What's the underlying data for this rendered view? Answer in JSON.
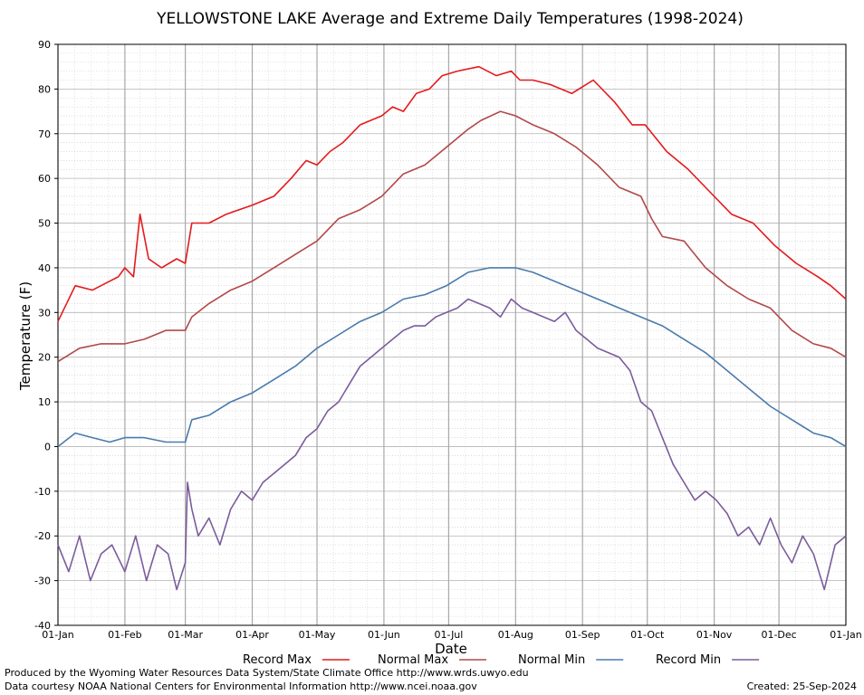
{
  "chart_data": {
    "type": "line",
    "title": "YELLOWSTONE LAKE Average and Extreme Daily Temperatures (1998-2024)",
    "xlabel": "Date",
    "ylabel": "Temperature (F)",
    "ylim": [
      -40,
      90
    ],
    "yticks": [
      -40,
      -30,
      -20,
      -10,
      0,
      10,
      20,
      30,
      40,
      50,
      60,
      70,
      80,
      90
    ],
    "xlim": [
      0,
      365
    ],
    "xticks": [
      {
        "day": 0,
        "label": "01-Jan"
      },
      {
        "day": 31,
        "label": "01-Feb"
      },
      {
        "day": 59,
        "label": "01-Mar"
      },
      {
        "day": 90,
        "label": "01-Apr"
      },
      {
        "day": 120,
        "label": "01-May"
      },
      {
        "day": 151,
        "label": "01-Jun"
      },
      {
        "day": 181,
        "label": "01-Jul"
      },
      {
        "day": 212,
        "label": "01-Aug"
      },
      {
        "day": 243,
        "label": "01-Sep"
      },
      {
        "day": 273,
        "label": "01-Oct"
      },
      {
        "day": 304,
        "label": "01-Nov"
      },
      {
        "day": 334,
        "label": "01-Dec"
      },
      {
        "day": 365,
        "label": "01-Jan"
      }
    ],
    "grid": true,
    "legend_position": "bottom",
    "series": [
      {
        "name": "Record Max",
        "color": "#e41a1c",
        "x": [
          0,
          8,
          16,
          24,
          28,
          31,
          35,
          38,
          42,
          48,
          55,
          59,
          62,
          70,
          78,
          90,
          100,
          108,
          115,
          120,
          126,
          132,
          140,
          150,
          155,
          160,
          166,
          172,
          178,
          185,
          195,
          203,
          210,
          214,
          220,
          228,
          238,
          248,
          258,
          266,
          272,
          282,
          292,
          302,
          312,
          322,
          332,
          342,
          352,
          358,
          365
        ],
        "y": [
          28,
          36,
          35,
          37,
          38,
          40,
          38,
          52,
          42,
          40,
          42,
          41,
          50,
          50,
          52,
          54,
          56,
          60,
          64,
          63,
          66,
          68,
          72,
          74,
          76,
          75,
          79,
          80,
          83,
          84,
          85,
          83,
          84,
          82,
          82,
          81,
          79,
          82,
          77,
          72,
          72,
          66,
          62,
          57,
          52,
          50,
          45,
          41,
          38,
          36,
          33
        ]
      },
      {
        "name": "Normal Max",
        "color": "#b2484a",
        "x": [
          0,
          10,
          20,
          31,
          40,
          50,
          59,
          62,
          70,
          80,
          90,
          100,
          110,
          120,
          130,
          140,
          150,
          160,
          170,
          180,
          190,
          196,
          205,
          212,
          220,
          230,
          240,
          250,
          260,
          270,
          275,
          280,
          290,
          300,
          310,
          320,
          330,
          340,
          350,
          358,
          365
        ],
        "y": [
          19,
          22,
          23,
          23,
          24,
          26,
          26,
          29,
          32,
          35,
          37,
          40,
          43,
          46,
          51,
          53,
          56,
          61,
          63,
          67,
          71,
          73,
          75,
          74,
          72,
          70,
          67,
          63,
          58,
          56,
          51,
          47,
          46,
          40,
          36,
          33,
          31,
          26,
          23,
          22,
          20
        ]
      },
      {
        "name": "Normal Min",
        "color": "#4a7bab",
        "x": [
          0,
          8,
          16,
          24,
          31,
          40,
          50,
          59,
          62,
          70,
          80,
          90,
          100,
          110,
          120,
          130,
          140,
          150,
          160,
          170,
          180,
          190,
          200,
          212,
          220,
          230,
          240,
          250,
          260,
          270,
          280,
          290,
          300,
          310,
          320,
          330,
          340,
          350,
          358,
          365
        ],
        "y": [
          0,
          3,
          2,
          1,
          2,
          2,
          1,
          1,
          6,
          7,
          10,
          12,
          15,
          18,
          22,
          25,
          28,
          30,
          33,
          34,
          36,
          39,
          40,
          40,
          39,
          37,
          35,
          33,
          31,
          29,
          27,
          24,
          21,
          17,
          13,
          9,
          6,
          3,
          2,
          0
        ]
      },
      {
        "name": "Record Min",
        "color": "#7b5c9c",
        "x": [
          0,
          5,
          10,
          15,
          20,
          25,
          31,
          36,
          41,
          46,
          51,
          55,
          59,
          60,
          62,
          65,
          70,
          75,
          80,
          85,
          90,
          95,
          100,
          105,
          110,
          115,
          120,
          125,
          130,
          135,
          140,
          145,
          150,
          155,
          160,
          165,
          170,
          175,
          180,
          185,
          190,
          195,
          200,
          205,
          210,
          215,
          220,
          225,
          230,
          235,
          240,
          245,
          250,
          255,
          260,
          265,
          270,
          275,
          280,
          285,
          290,
          295,
          300,
          305,
          310,
          315,
          320,
          325,
          330,
          335,
          340,
          345,
          350,
          355,
          360,
          365
        ],
        "y": [
          -22,
          -28,
          -20,
          -30,
          -24,
          -22,
          -28,
          -20,
          -30,
          -22,
          -24,
          -32,
          -26,
          -8,
          -14,
          -20,
          -16,
          -22,
          -14,
          -10,
          -12,
          -8,
          -6,
          -4,
          -2,
          2,
          4,
          8,
          10,
          14,
          18,
          20,
          22,
          24,
          26,
          27,
          27,
          29,
          30,
          31,
          33,
          32,
          31,
          29,
          33,
          31,
          30,
          29,
          28,
          30,
          26,
          24,
          22,
          21,
          20,
          17,
          10,
          8,
          2,
          -4,
          -8,
          -12,
          -10,
          -12,
          -15,
          -20,
          -18,
          -22,
          -16,
          -22,
          -26,
          -20,
          -24,
          -32,
          -22,
          -20
        ]
      }
    ]
  },
  "footer": {
    "producer": "Produced by the Wyoming Water Resources Data System/State Climate Office http://www.wrds.uwyo.edu",
    "courtesy": "Data courtesy NOAA National Centers for Environmental Information http://www.ncei.noaa.gov",
    "created": "Created:  25-Sep-2024"
  }
}
